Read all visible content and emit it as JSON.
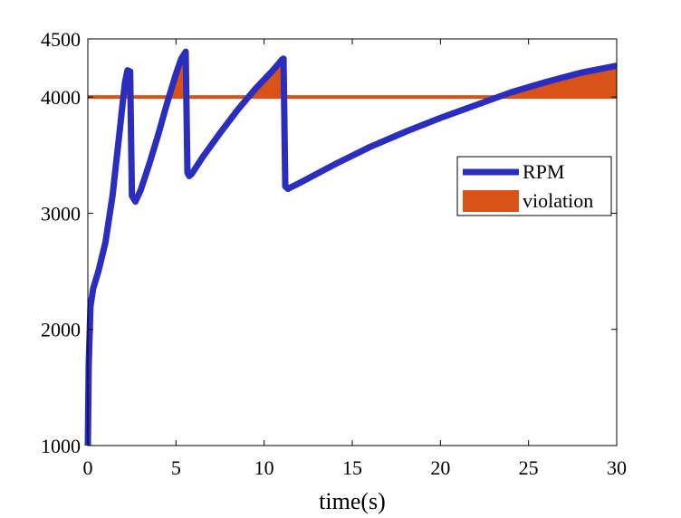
{
  "chart_data": {
    "type": "line",
    "xlabel": "time(s)",
    "ylabel": "",
    "title": "",
    "xlim": [
      0,
      30
    ],
    "ylim": [
      1000,
      4500
    ],
    "xticks": [
      0,
      5,
      10,
      15,
      20,
      25,
      30
    ],
    "yticks": [
      1000,
      2000,
      3000,
      4000,
      4500
    ],
    "xtick_labels": [
      "0",
      "5",
      "10",
      "15",
      "20",
      "25",
      "30"
    ],
    "ytick_labels": [
      "1000",
      "2000",
      "3000",
      "4000",
      "4500"
    ],
    "grid": false,
    "legend_position": "right",
    "threshold": 4000,
    "series": [
      {
        "name": "RPM",
        "color": "#2b2dbf",
        "x": [
          0,
          0.05,
          0.15,
          0.3,
          0.6,
          1.0,
          1.4,
          1.8,
          2.1,
          2.25,
          2.4,
          2.5,
          2.7,
          3.0,
          3.5,
          4.0,
          4.5,
          5.0,
          5.3,
          5.55,
          5.65,
          5.75,
          5.9,
          6.5,
          7.5,
          8.5,
          9.5,
          10.5,
          11.0,
          11.1,
          11.2,
          11.35,
          12.0,
          14.0,
          16.0,
          18.0,
          20.0,
          22.0,
          24.0,
          26.0,
          28.0,
          30.0
        ],
        "y": [
          1000,
          1700,
          2200,
          2350,
          2500,
          2750,
          3150,
          3700,
          4120,
          4230,
          4220,
          3150,
          3100,
          3200,
          3430,
          3680,
          3950,
          4200,
          4330,
          4390,
          3350,
          3320,
          3340,
          3480,
          3690,
          3890,
          4070,
          4230,
          4320,
          4330,
          3230,
          3210,
          3260,
          3420,
          3570,
          3700,
          3820,
          3930,
          4040,
          4130,
          4210,
          4270
        ]
      },
      {
        "name": "violation",
        "color": "#d95319",
        "type": "area",
        "description_of_region": "fill between RPM and 4000 where RPM > 4000"
      }
    ]
  },
  "legend": {
    "items": [
      {
        "label": "RPM",
        "color": "#2b2dbf"
      },
      {
        "label": "violation",
        "color": "#d95319"
      }
    ]
  }
}
